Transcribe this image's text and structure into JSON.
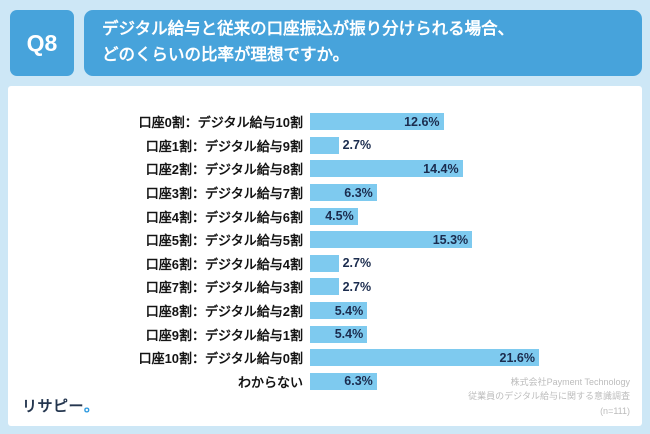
{
  "page": {
    "background_color": "#CDE7F6",
    "accent_blue": "#47A3DB"
  },
  "header": {
    "q_label": "Q8",
    "title_line1": "デジタル給与と従来の口座振込が振り分けられる場合、",
    "title_line2": "どのくらいの比率が理想ですか。"
  },
  "chart_data": {
    "type": "bar",
    "orientation": "horizontal",
    "title": "デジタル給与と従来の口座振込が振り分けられる場合、どのくらいの比率が理想ですか。",
    "categories": [
      "口座0割：デジタル給与10割",
      "口座1割：デジタル給与9割",
      "口座2割：デジタル給与8割",
      "口座3割：デジタル給与7割",
      "口座4割：デジタル給与6割",
      "口座5割：デジタル給与5割",
      "口座6割：デジタル給与4割",
      "口座7割：デジタル給与3割",
      "口座8割：デジタル給与2割",
      "口座9割：デジタル給与1割",
      "口座10割：デジタル給与0割",
      "わからない"
    ],
    "values": [
      12.6,
      2.7,
      14.4,
      6.3,
      4.5,
      15.3,
      2.7,
      2.7,
      5.4,
      5.4,
      21.6,
      6.3
    ],
    "value_labels": [
      "12.6%",
      "2.7%",
      "14.4%",
      "6.3%",
      "4.5%",
      "15.3%",
      "2.7%",
      "2.7%",
      "5.4%",
      "5.4%",
      "21.6%",
      "6.3%"
    ],
    "xlim": [
      0,
      25
    ],
    "grid": false,
    "legend": false,
    "bar_color": "#7ECAEF",
    "label_color": "#1B2C4E"
  },
  "footer": {
    "source_line1": "株式会社Payment Technology",
    "source_line2": "従業員のデジタル給与に関する意識調査",
    "source_line3": "(n=111)"
  },
  "logo": {
    "text": "リサピー",
    "dot": "。"
  }
}
